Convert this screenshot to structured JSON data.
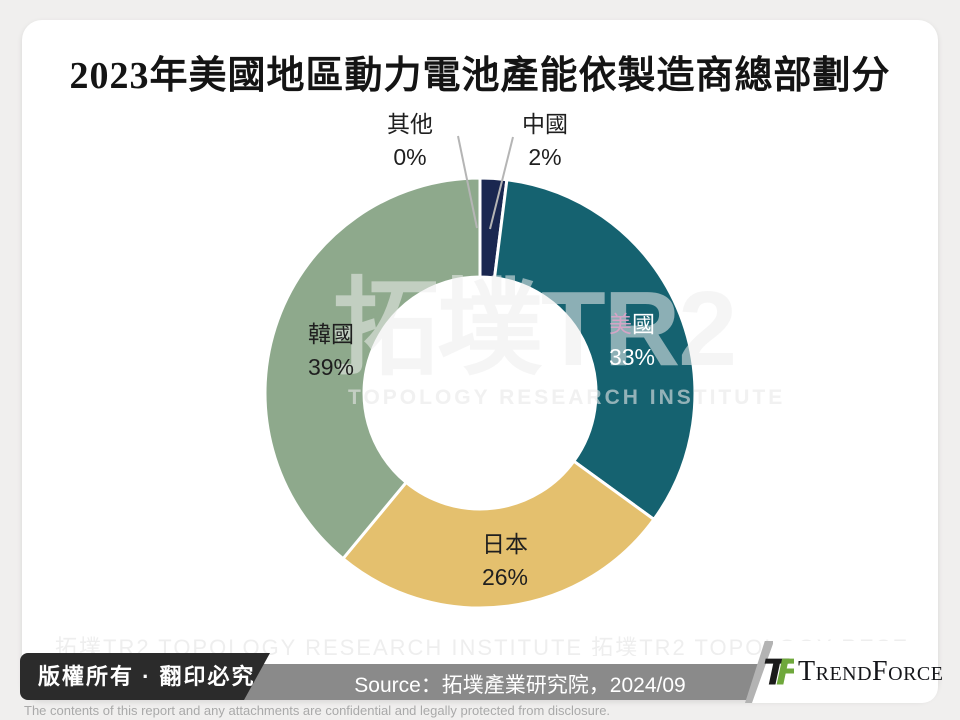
{
  "chart_data": {
    "type": "pie",
    "variant": "donut",
    "title": "2023年美國地區動力電池產能依製造商總部劃分",
    "unit": "%",
    "start_angle_deg": 0,
    "direction": "clockwise",
    "legend": "none",
    "hole_fill": "#ffffff",
    "slices": [
      {
        "label": "其他",
        "value": 0,
        "pct_label": "0%",
        "color": "#8ea98c",
        "label_placement": "callout-left"
      },
      {
        "label": "中國",
        "value": 2,
        "pct_label": "2%",
        "color": "#1a2750",
        "label_placement": "callout-right"
      },
      {
        "label": "美國",
        "value": 33,
        "pct_label": "33%",
        "color": "#156270",
        "label_placement": "inside",
        "label_color": "#ffffff"
      },
      {
        "label": "日本",
        "value": 26,
        "pct_label": "26%",
        "color": "#e4c06e",
        "label_placement": "inside",
        "label_color": "#1f1f1f"
      },
      {
        "label": "韓國",
        "value": 39,
        "pct_label": "39%",
        "color": "#8ea98c",
        "label_placement": "inside",
        "label_color": "#1f1f1f"
      }
    ]
  },
  "watermark": {
    "glyphs": "拓墣TR2",
    "subtext": "TOPOLOGY RESEARCH INSTITUTE",
    "footer_row": "拓墣TR2 TOPOLOGY RESEARCH INSTITUTE 拓墣TR2 TOPOLOGY RESEARCH INSTITUTE 拓墣TR2"
  },
  "footer": {
    "copyright": "版權所有 · 翻印必究",
    "source": "Source：拓墣產業研究院，2024/09",
    "brand": "TrendForce",
    "disclaimer": "The contents of this report and any attachments are confidential and legally protected from disclosure."
  }
}
